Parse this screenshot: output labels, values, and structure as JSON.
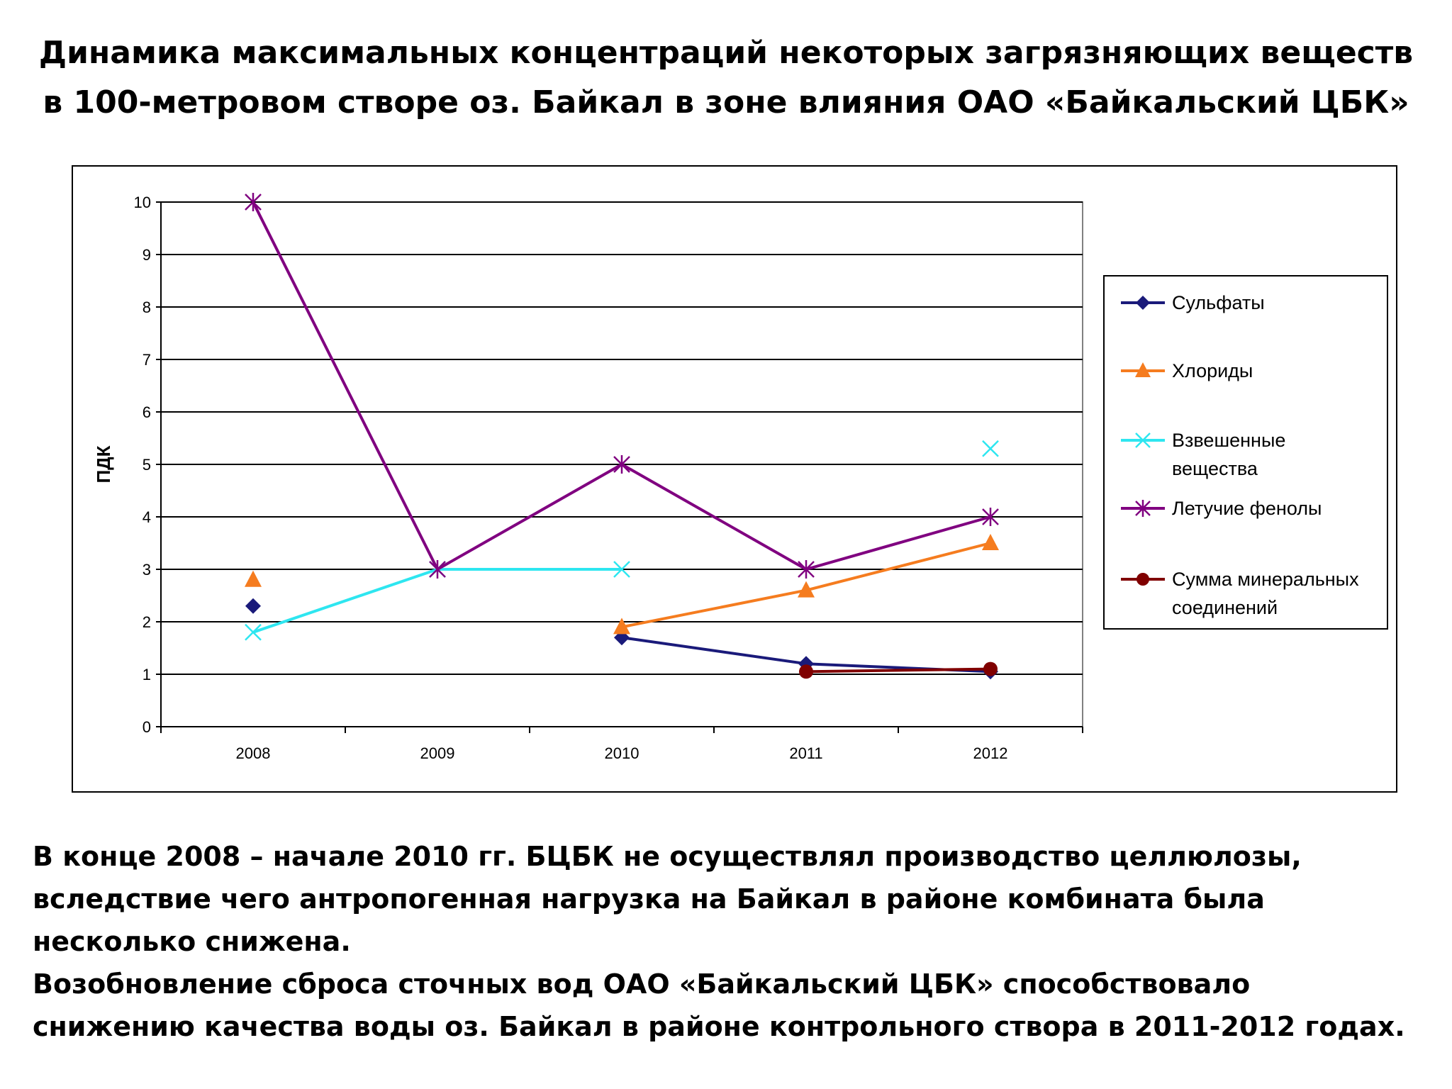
{
  "title_lines": [
    "Динамика максимальных концентраций некоторых загрязняющих веществ",
    "в 100-метровом створе оз. Байкал в зоне влияния ОАО «Байкальский ЦБК»"
  ],
  "caption_lines": [
    "В конце 2008 – начале 2010 гг. БЦБК не осуществлял производство целлюлозы,",
    "вследствие чего антропогенная нагрузка на Байкал в районе комбината была",
    "несколько снижена.",
    "Возобновление сброса сточных вод ОАО «Байкальский ЦБК» способствовало",
    "снижению качества воды оз. Байкал в районе контрольного створа в 2011-2012 годах."
  ],
  "chart_data": {
    "type": "line",
    "title": "",
    "xlabel": "",
    "ylabel": "ПДК",
    "categories": [
      "2008",
      "2009",
      "2010",
      "2011",
      "2012"
    ],
    "ylim": [
      0,
      10
    ],
    "yticks": [
      "0",
      "1",
      "2",
      "3",
      "4",
      "5",
      "6",
      "7",
      "8",
      "9",
      "10"
    ],
    "grid": true,
    "legend_position": "right",
    "series": [
      {
        "name": "Сульфаты",
        "values": [
          2.3,
          null,
          1.7,
          1.2,
          1.05
        ],
        "color": "#1a1a7a",
        "marker": "diamond"
      },
      {
        "name": "Хлориды",
        "values": [
          2.8,
          null,
          1.9,
          2.6,
          3.5
        ],
        "color": "#f57c1f",
        "marker": "triangle"
      },
      {
        "name": "Взвешенные вещества",
        "values": [
          1.8,
          3.0,
          3.0,
          null,
          5.3
        ],
        "color": "#2ee6f0",
        "marker": "x"
      },
      {
        "name": "Летучие фенолы",
        "values": [
          10,
          3.0,
          5.0,
          3.0,
          4.0
        ],
        "color": "#800080",
        "marker": "asterisk"
      },
      {
        "name": "Сумма минеральных соединений",
        "values": [
          null,
          null,
          null,
          1.05,
          1.1
        ],
        "color": "#800000",
        "marker": "circle"
      }
    ],
    "legend_labels": [
      [
        "Сульфаты"
      ],
      [
        "Хлориды"
      ],
      [
        "Взвешенные",
        "вещества"
      ],
      [
        "Летучие фенолы"
      ],
      [
        "Сумма минеральных",
        "соединений"
      ]
    ]
  }
}
